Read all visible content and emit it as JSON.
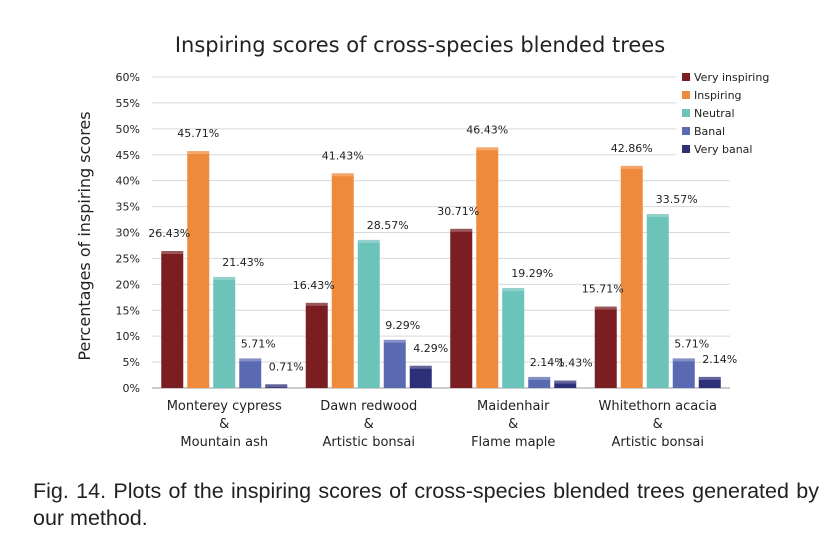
{
  "chart_data": {
    "type": "bar",
    "title": "Inspiring scores of cross-species blended trees",
    "ylabel": "Percentages of inspiring scores",
    "xlabel": "",
    "ylim": [
      0,
      60
    ],
    "yticks": [
      0,
      5,
      10,
      15,
      20,
      25,
      30,
      35,
      40,
      45,
      50,
      55,
      60
    ],
    "ytick_suffix": "%",
    "grid": true,
    "legend_position": "top-right",
    "categories": [
      [
        "Monterey cypress",
        "&",
        "Mountain ash"
      ],
      [
        "Dawn redwood",
        "&",
        "Artistic bonsai"
      ],
      [
        "Maidenhair",
        "&",
        "Flame maple"
      ],
      [
        "Whitethorn acacia",
        "&",
        "Artistic bonsai"
      ]
    ],
    "series": [
      {
        "name": "Very inspiring",
        "color": "#7a1e22",
        "values": [
          26.43,
          16.43,
          30.71,
          15.71
        ],
        "labels": [
          "26.43%",
          "16.43%",
          "30.71%",
          "15.71%"
        ]
      },
      {
        "name": "Inspiring",
        "color": "#ef8a3c",
        "values": [
          45.71,
          41.43,
          46.43,
          42.86
        ],
        "labels": [
          "45.71%",
          "41.43%",
          "46.43%",
          "42.86%"
        ]
      },
      {
        "name": "Neutral",
        "color": "#6cc3b9",
        "values": [
          21.43,
          28.57,
          19.29,
          33.57
        ],
        "labels": [
          "21.43%",
          "28.57%",
          "19.29%",
          "33.57%"
        ]
      },
      {
        "name": "Banal",
        "color": "#5a6ab2",
        "values": [
          5.71,
          9.29,
          2.14,
          5.71
        ],
        "labels": [
          "5.71%",
          "9.29%",
          "2.14%",
          "5.71%"
        ]
      },
      {
        "name": "Very banal",
        "color": "#2d2f78",
        "values": [
          0.71,
          4.29,
          1.43,
          2.14
        ],
        "labels": [
          "0.71%",
          "4.29%",
          "1.43%",
          "2.14%"
        ]
      }
    ]
  },
  "caption": "Fig. 14. Plots of the inspiring scores of cross-species blended trees generated by our method."
}
